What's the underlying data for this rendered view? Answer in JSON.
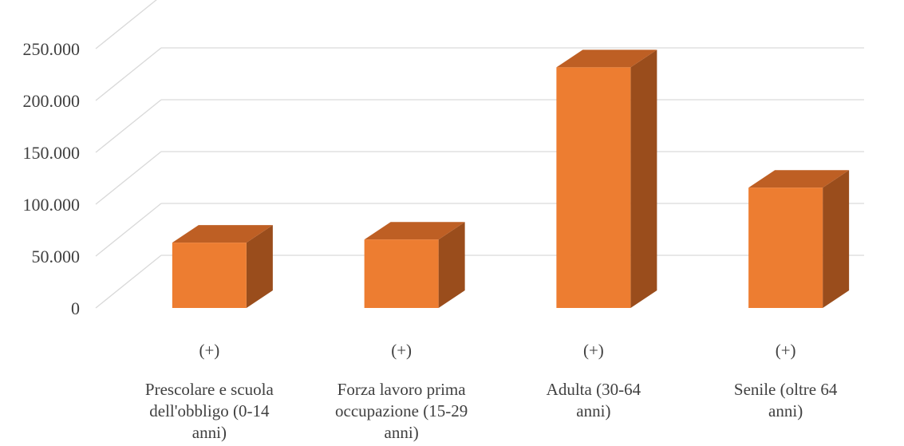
{
  "chart_data": {
    "type": "bar",
    "variant": "3d-column",
    "categories": [
      [
        "Prescolare e scuola",
        "dell'obbligo (0-14",
        "anni)"
      ],
      [
        "Forza lavoro prima",
        "occupazione (15-29",
        "anni)"
      ],
      [
        "Adulta (30-64",
        "anni)"
      ],
      [
        "Senile (oltre 64",
        "anni)"
      ]
    ],
    "category_signs": [
      "(+)",
      "(+)",
      "(+)",
      "(+)"
    ],
    "values": [
      63000,
      66000,
      232000,
      116000
    ],
    "yticks": [
      "0",
      "50.000",
      "100.000",
      "150.000",
      "200.000",
      "250.000"
    ],
    "ylim": [
      0,
      300000
    ],
    "grid": true,
    "legend": "none",
    "title": "",
    "xlabel": "",
    "ylabel": "",
    "colors": {
      "front": "#ED7D31",
      "top": "#BE5F24",
      "side": "#9A4D1C",
      "grid": "#d9d9d9",
      "text": "#404040"
    }
  }
}
